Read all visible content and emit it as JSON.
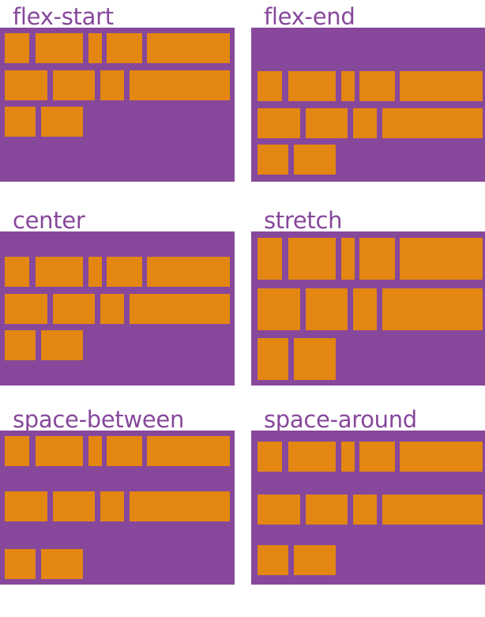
{
  "colors": {
    "container": "#87489b",
    "item": "#e38612",
    "label": "#87489b"
  },
  "panels": [
    {
      "label": "flex-start"
    },
    {
      "label": "flex-end"
    },
    {
      "label": "center"
    },
    {
      "label": "stretch"
    },
    {
      "label": "space-between"
    },
    {
      "label": "space-around"
    }
  ]
}
